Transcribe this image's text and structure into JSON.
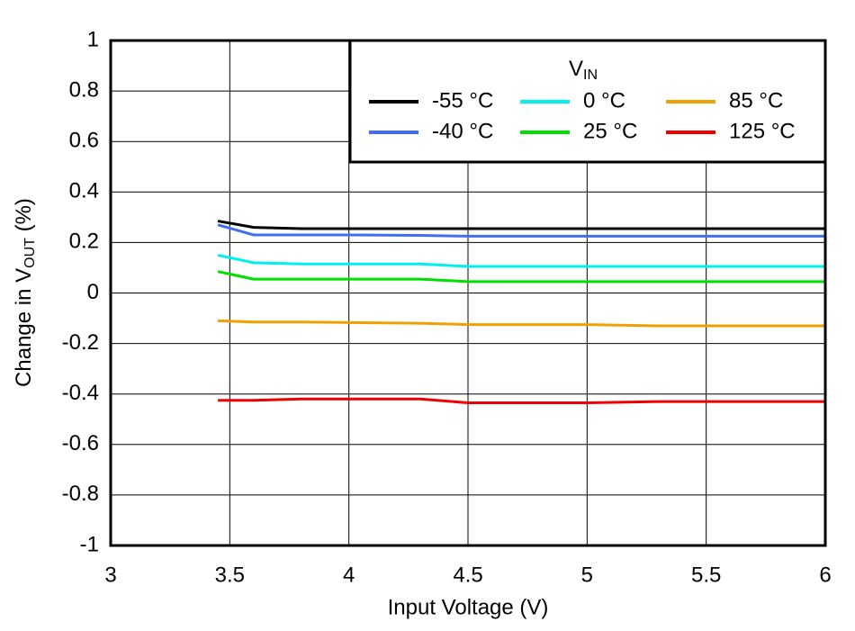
{
  "chart_data": {
    "type": "line",
    "x_label": "Input Voltage (V)",
    "y_label": {
      "main": "Change in V",
      "sub": "OUT",
      "suffix": " (%)"
    },
    "legend_title": {
      "main": "V",
      "sub": "IN"
    },
    "x": [
      3.45,
      3.6,
      3.8,
      4,
      4.3,
      4.5,
      5,
      5.3,
      6
    ],
    "series": [
      {
        "name": "-55 °C",
        "color": "#000000",
        "values": [
          0.285,
          0.26,
          0.255,
          0.255,
          0.255,
          0.255,
          0.255,
          0.255,
          0.255
        ]
      },
      {
        "name": "-40 °C",
        "color": "#3f6ff0",
        "values": [
          0.27,
          0.23,
          0.23,
          0.23,
          0.228,
          0.225,
          0.225,
          0.225,
          0.225
        ]
      },
      {
        "name": "0 °C",
        "color": "#00f0f0",
        "values": [
          0.15,
          0.12,
          0.115,
          0.115,
          0.115,
          0.105,
          0.105,
          0.105,
          0.105
        ]
      },
      {
        "name": "25 °C",
        "color": "#00e000",
        "values": [
          0.085,
          0.055,
          0.055,
          0.055,
          0.055,
          0.045,
          0.045,
          0.045,
          0.045
        ]
      },
      {
        "name": "85 °C",
        "color": "#f0a000",
        "values": [
          -0.11,
          -0.115,
          -0.115,
          -0.117,
          -0.12,
          -0.125,
          -0.125,
          -0.13,
          -0.13
        ]
      },
      {
        "name": "125 °C",
        "color": "#f00000",
        "values": [
          -0.425,
          -0.425,
          -0.42,
          -0.42,
          -0.42,
          -0.435,
          -0.435,
          -0.43,
          -0.43
        ]
      }
    ],
    "xlim": [
      3,
      6
    ],
    "xticks": [
      3,
      3.5,
      4,
      4.5,
      5,
      5.5,
      6
    ],
    "ylim": [
      -1,
      1
    ],
    "yticks": [
      -1,
      -0.8,
      -0.6,
      -0.4,
      -0.2,
      0,
      0.2,
      0.4,
      0.6,
      0.8,
      1
    ],
    "grid": true
  }
}
